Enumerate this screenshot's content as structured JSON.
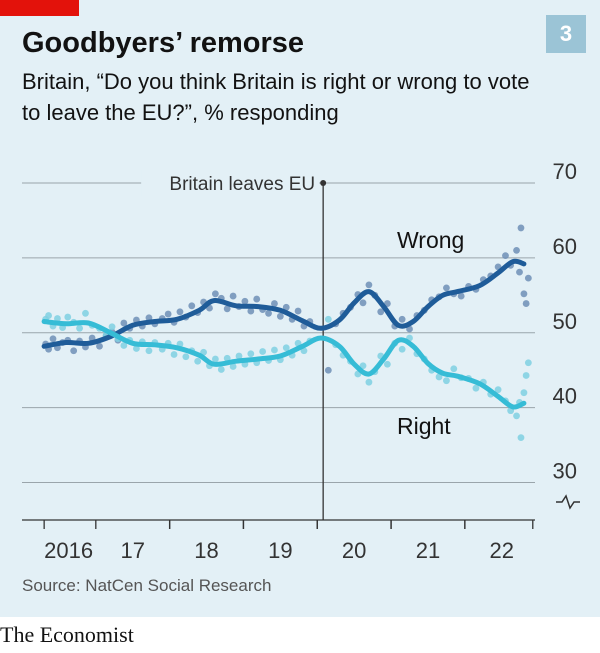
{
  "header": {
    "title": "Goodbyers’ remorse",
    "subtitle": "Britain, “Do you think Britain is right or wrong to vote to leave the EU?”, % responding",
    "chart_number": "3"
  },
  "footer": {
    "source": "Source: NatCen Social Research",
    "brand": "The Economist"
  },
  "colors": {
    "background": "#e3f0f6",
    "wrong": "#1f5c99",
    "right": "#36bcd6",
    "accent_red": "#e3120b",
    "badge": "#9bc4d6"
  },
  "chart_data": {
    "type": "line",
    "x_ticks": [
      {
        "label": "2016",
        "x": 2016.3
      },
      {
        "label": "17",
        "x": 2017.0
      },
      {
        "label": "18",
        "x": 2018.0
      },
      {
        "label": "19",
        "x": 2019.0
      },
      {
        "label": "20",
        "x": 2020.0
      },
      {
        "label": "21",
        "x": 2021.0
      },
      {
        "label": "22",
        "x": 2022.0
      }
    ],
    "xlim": [
      2016.0,
      2022.95
    ],
    "y_ticks": [
      "30",
      "40",
      "50",
      "60",
      "70"
    ],
    "ylim": [
      25,
      70
    ],
    "axis_break": true,
    "grid": "horizontal",
    "annotation": {
      "label": "Britain leaves EU",
      "x": 2020.08
    },
    "series": [
      {
        "name": "Wrong",
        "color": "#1f5c99",
        "trend": [
          [
            2016.3,
            48.2
          ],
          [
            2016.6,
            48.7
          ],
          [
            2016.9,
            48.6
          ],
          [
            2017.2,
            49.5
          ],
          [
            2017.5,
            51.0
          ],
          [
            2017.8,
            51.5
          ],
          [
            2018.1,
            51.8
          ],
          [
            2018.4,
            53.0
          ],
          [
            2018.6,
            54.3
          ],
          [
            2018.9,
            53.6
          ],
          [
            2019.2,
            53.5
          ],
          [
            2019.5,
            53.0
          ],
          [
            2019.8,
            51.6
          ],
          [
            2020.05,
            50.6
          ],
          [
            2020.3,
            51.7
          ],
          [
            2020.5,
            54.0
          ],
          [
            2020.7,
            55.5
          ],
          [
            2020.9,
            53.5
          ],
          [
            2021.1,
            51.0
          ],
          [
            2021.3,
            51.5
          ],
          [
            2021.5,
            53.5
          ],
          [
            2021.7,
            55.0
          ],
          [
            2021.9,
            55.5
          ],
          [
            2022.2,
            56.3
          ],
          [
            2022.45,
            58.0
          ],
          [
            2022.65,
            59.5
          ],
          [
            2022.8,
            59.2
          ]
        ],
        "points": [
          [
            2016.32,
            48.5
          ],
          [
            2016.36,
            47.8
          ],
          [
            2016.42,
            49.2
          ],
          [
            2016.48,
            48.0
          ],
          [
            2016.55,
            48.7
          ],
          [
            2016.62,
            49.0
          ],
          [
            2016.7,
            47.6
          ],
          [
            2016.78,
            48.9
          ],
          [
            2016.86,
            48.1
          ],
          [
            2016.95,
            49.3
          ],
          [
            2017.05,
            48.2
          ],
          [
            2017.14,
            49.6
          ],
          [
            2017.22,
            50.1
          ],
          [
            2017.3,
            49.0
          ],
          [
            2017.38,
            51.3
          ],
          [
            2017.46,
            50.6
          ],
          [
            2017.55,
            51.7
          ],
          [
            2017.63,
            50.9
          ],
          [
            2017.72,
            52.0
          ],
          [
            2017.8,
            51.2
          ],
          [
            2017.9,
            51.9
          ],
          [
            2017.98,
            52.5
          ],
          [
            2018.06,
            51.4
          ],
          [
            2018.14,
            52.8
          ],
          [
            2018.22,
            52.1
          ],
          [
            2018.3,
            53.6
          ],
          [
            2018.38,
            52.7
          ],
          [
            2018.46,
            54.1
          ],
          [
            2018.54,
            53.3
          ],
          [
            2018.62,
            55.2
          ],
          [
            2018.7,
            54.6
          ],
          [
            2018.78,
            53.2
          ],
          [
            2018.86,
            54.9
          ],
          [
            2018.94,
            53.5
          ],
          [
            2019.02,
            54.2
          ],
          [
            2019.1,
            52.9
          ],
          [
            2019.18,
            54.5
          ],
          [
            2019.26,
            53.1
          ],
          [
            2019.34,
            52.6
          ],
          [
            2019.42,
            53.9
          ],
          [
            2019.5,
            52.2
          ],
          [
            2019.58,
            53.4
          ],
          [
            2019.66,
            51.8
          ],
          [
            2019.74,
            52.9
          ],
          [
            2019.82,
            50.9
          ],
          [
            2019.9,
            51.5
          ],
          [
            2020.15,
            45.0
          ],
          [
            2020.25,
            51.2
          ],
          [
            2020.35,
            52.6
          ],
          [
            2020.45,
            53.4
          ],
          [
            2020.55,
            55.1
          ],
          [
            2020.62,
            54.0
          ],
          [
            2020.7,
            56.4
          ],
          [
            2020.78,
            55.0
          ],
          [
            2020.86,
            52.8
          ],
          [
            2020.95,
            53.9
          ],
          [
            2021.05,
            50.9
          ],
          [
            2021.15,
            51.8
          ],
          [
            2021.25,
            50.5
          ],
          [
            2021.35,
            52.3
          ],
          [
            2021.45,
            53.0
          ],
          [
            2021.55,
            54.4
          ],
          [
            2021.65,
            54.8
          ],
          [
            2021.75,
            56.0
          ],
          [
            2021.85,
            55.2
          ],
          [
            2021.95,
            54.9
          ],
          [
            2022.05,
            56.2
          ],
          [
            2022.15,
            55.8
          ],
          [
            2022.25,
            57.1
          ],
          [
            2022.35,
            57.6
          ],
          [
            2022.45,
            58.8
          ],
          [
            2022.55,
            60.3
          ],
          [
            2022.62,
            59.0
          ],
          [
            2022.7,
            61.0
          ],
          [
            2022.74,
            58.1
          ],
          [
            2022.76,
            64.0
          ],
          [
            2022.8,
            55.2
          ],
          [
            2022.83,
            53.9
          ],
          [
            2022.86,
            57.3
          ]
        ]
      },
      {
        "name": "Right",
        "color": "#36bcd6",
        "trend": [
          [
            2016.3,
            51.5
          ],
          [
            2016.6,
            51.2
          ],
          [
            2016.9,
            51.3
          ],
          [
            2017.2,
            50.0
          ],
          [
            2017.5,
            48.6
          ],
          [
            2017.8,
            48.4
          ],
          [
            2018.1,
            48.0
          ],
          [
            2018.4,
            47.0
          ],
          [
            2018.6,
            45.8
          ],
          [
            2018.9,
            46.2
          ],
          [
            2019.2,
            46.5
          ],
          [
            2019.5,
            46.9
          ],
          [
            2019.8,
            48.2
          ],
          [
            2020.05,
            49.3
          ],
          [
            2020.3,
            48.2
          ],
          [
            2020.5,
            45.8
          ],
          [
            2020.7,
            44.5
          ],
          [
            2020.9,
            46.5
          ],
          [
            2021.1,
            49.0
          ],
          [
            2021.3,
            48.2
          ],
          [
            2021.5,
            45.9
          ],
          [
            2021.7,
            44.6
          ],
          [
            2021.9,
            44.2
          ],
          [
            2022.2,
            43.2
          ],
          [
            2022.45,
            41.5
          ],
          [
            2022.65,
            40.1
          ],
          [
            2022.8,
            40.6
          ]
        ],
        "points": [
          [
            2016.32,
            51.8
          ],
          [
            2016.36,
            52.3
          ],
          [
            2016.42,
            50.9
          ],
          [
            2016.48,
            51.9
          ],
          [
            2016.55,
            50.7
          ],
          [
            2016.62,
            52.1
          ],
          [
            2016.7,
            51.4
          ],
          [
            2016.78,
            50.6
          ],
          [
            2016.86,
            52.6
          ],
          [
            2016.95,
            51.0
          ],
          [
            2017.05,
            50.6
          ],
          [
            2017.14,
            49.7
          ],
          [
            2017.22,
            50.8
          ],
          [
            2017.3,
            49.2
          ],
          [
            2017.38,
            48.3
          ],
          [
            2017.46,
            49.0
          ],
          [
            2017.55,
            47.9
          ],
          [
            2017.63,
            48.8
          ],
          [
            2017.72,
            47.6
          ],
          [
            2017.8,
            48.7
          ],
          [
            2017.9,
            47.8
          ],
          [
            2017.98,
            48.6
          ],
          [
            2018.06,
            47.1
          ],
          [
            2018.14,
            48.5
          ],
          [
            2018.22,
            46.8
          ],
          [
            2018.3,
            47.6
          ],
          [
            2018.38,
            46.2
          ],
          [
            2018.46,
            47.4
          ],
          [
            2018.54,
            45.6
          ],
          [
            2018.62,
            46.5
          ],
          [
            2018.7,
            45.1
          ],
          [
            2018.78,
            46.6
          ],
          [
            2018.86,
            45.5
          ],
          [
            2018.94,
            46.9
          ],
          [
            2019.02,
            45.8
          ],
          [
            2019.1,
            47.2
          ],
          [
            2019.18,
            46.0
          ],
          [
            2019.26,
            47.5
          ],
          [
            2019.34,
            46.3
          ],
          [
            2019.42,
            47.7
          ],
          [
            2019.5,
            46.4
          ],
          [
            2019.58,
            48.0
          ],
          [
            2019.66,
            47.0
          ],
          [
            2019.74,
            48.6
          ],
          [
            2019.82,
            47.6
          ],
          [
            2019.9,
            48.9
          ],
          [
            2020.15,
            51.8
          ],
          [
            2020.25,
            48.4
          ],
          [
            2020.35,
            47.0
          ],
          [
            2020.45,
            46.2
          ],
          [
            2020.55,
            44.5
          ],
          [
            2020.62,
            45.6
          ],
          [
            2020.7,
            43.4
          ],
          [
            2020.78,
            44.8
          ],
          [
            2020.86,
            46.9
          ],
          [
            2020.95,
            45.8
          ],
          [
            2021.05,
            48.6
          ],
          [
            2021.15,
            47.8
          ],
          [
            2021.25,
            49.3
          ],
          [
            2021.35,
            47.2
          ],
          [
            2021.45,
            46.5
          ],
          [
            2021.55,
            45.0
          ],
          [
            2021.65,
            44.1
          ],
          [
            2021.75,
            43.6
          ],
          [
            2021.85,
            45.2
          ],
          [
            2021.95,
            44.0
          ],
          [
            2022.05,
            43.9
          ],
          [
            2022.15,
            42.6
          ],
          [
            2022.25,
            43.4
          ],
          [
            2022.35,
            41.8
          ],
          [
            2022.45,
            42.4
          ],
          [
            2022.55,
            40.9
          ],
          [
            2022.62,
            39.6
          ],
          [
            2022.7,
            38.9
          ],
          [
            2022.74,
            40.7
          ],
          [
            2022.76,
            36.0
          ],
          [
            2022.8,
            42.0
          ],
          [
            2022.83,
            44.3
          ],
          [
            2022.86,
            46.0
          ]
        ]
      }
    ]
  }
}
